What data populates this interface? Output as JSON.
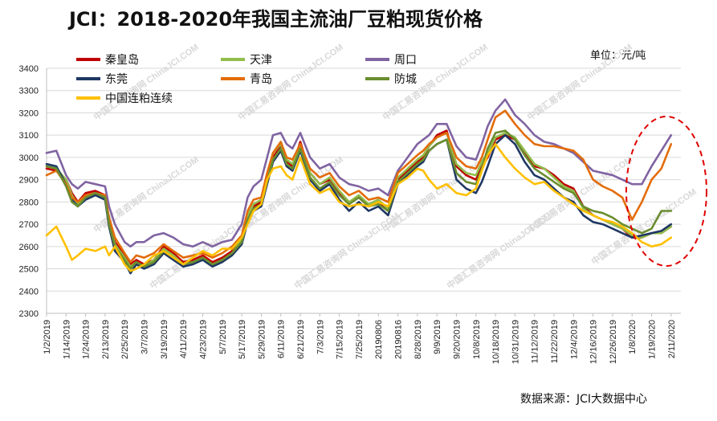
{
  "header": {
    "title": "JCI：2018-2020年我国主流油厂豆粕现货价格",
    "unit": "单位：元/吨",
    "source": "数据来源：JCI大数据中心"
  },
  "watermark_text": "中国汇易咨询网 ChinaJCI.COM",
  "chart_data": {
    "type": "line",
    "ylim": [
      2300,
      3400
    ],
    "yticks": [
      2300,
      2400,
      2500,
      2600,
      2700,
      2800,
      2900,
      3000,
      3100,
      3200,
      3300,
      3400
    ],
    "x_tick_labels": [
      "1/2/2019",
      "1/14/2019",
      "1/24/2019",
      "2/13/2019",
      "2/25/2019",
      "3/7/2019",
      "3/19/2019",
      "4/11/2019",
      "4/23/2019",
      "5/7/2019",
      "5/17/2019",
      "5/29/2019",
      "6/11/2019",
      "6/21/2019",
      "7/3/2019",
      "7/15/2019",
      "7/25/2019",
      "20190806",
      "20190816",
      "8/28/2019",
      "9/9/2019",
      "9/20/2019",
      "10/8/2019",
      "10/18/2019",
      "10/31/2019",
      "11/12/2019",
      "11/22/2019",
      "12/4/2019",
      "12/16/2019",
      "12/26/2019",
      "1/8/2020",
      "1/19/2020",
      "2/11/2020"
    ],
    "x_domain": [
      0,
      32.5
    ],
    "grid": true,
    "legend_position": "top-left, three columns",
    "highlight": "red dashed ellipse around latest values (Jan–Feb 2020)",
    "series": [
      {
        "name": "秦皇岛",
        "color": "#c00000",
        "x": [
          0,
          0.5,
          1,
          1.3,
          1.6,
          2,
          2.5,
          3,
          3.2,
          3.5,
          4,
          4.3,
          4.6,
          5,
          5.5,
          6,
          6.5,
          7,
          7.5,
          8,
          8.5,
          9,
          9.5,
          10,
          10.3,
          10.6,
          11,
          11.3,
          11.6,
          12,
          12.3,
          12.6,
          13,
          13.5,
          14,
          14.5,
          15,
          15.5,
          16,
          16.5,
          17,
          17.5,
          18,
          18.5,
          19,
          19.3,
          19.6,
          20,
          20.5,
          21,
          21.5,
          22,
          22.3,
          22.6,
          23,
          23.5,
          24,
          24.5,
          25,
          25.5,
          26,
          26.5,
          27,
          27.5,
          28,
          28.5,
          29,
          29.5,
          30,
          30.5,
          31,
          31.5,
          32
        ],
        "values": [
          2950,
          2940,
          2900,
          2840,
          2800,
          2840,
          2850,
          2830,
          2720,
          2620,
          2560,
          2520,
          2540,
          2520,
          2540,
          2600,
          2570,
          2530,
          2540,
          2560,
          2530,
          2550,
          2580,
          2640,
          2730,
          2780,
          2800,
          2900,
          3000,
          3050,
          2980,
          2960,
          3070,
          2930,
          2880,
          2900,
          2840,
          2800,
          2820,
          2780,
          2800,
          2760,
          2900,
          2940,
          2980,
          3000,
          3050,
          3100,
          3120,
          2960,
          2920,
          2900,
          2960,
          3000,
          3080,
          3100,
          3080,
          3020,
          2960,
          2950,
          2920,
          2880,
          2860,
          2780,
          2740,
          2720,
          2700,
          2680,
          2640,
          2640,
          2660,
          2660,
          2690
        ]
      },
      {
        "name": "天津",
        "color": "#92bd4b",
        "x": [
          0,
          0.5,
          1,
          1.3,
          1.6,
          2,
          2.5,
          3,
          3.2,
          3.5,
          4,
          4.3,
          4.6,
          5,
          5.5,
          6,
          6.5,
          7,
          7.5,
          8,
          8.5,
          9,
          9.5,
          10,
          10.3,
          10.6,
          11,
          11.3,
          11.6,
          12,
          12.3,
          12.6,
          13,
          13.5,
          14,
          14.5,
          15,
          15.5,
          16,
          16.5,
          17,
          17.5,
          18,
          18.5,
          19,
          19.3,
          19.6,
          20,
          20.5,
          21,
          21.5,
          22,
          22.3,
          22.6,
          23,
          23.5,
          24,
          24.5,
          25,
          25.5,
          26,
          26.5,
          27,
          27.5,
          28,
          28.5,
          29,
          29.5,
          30,
          30.5,
          31,
          31.5,
          32
        ],
        "values": [
          2960,
          2950,
          2900,
          2830,
          2790,
          2830,
          2840,
          2820,
          2710,
          2610,
          2550,
          2510,
          2530,
          2510,
          2540,
          2590,
          2560,
          2520,
          2530,
          2550,
          2520,
          2540,
          2570,
          2630,
          2740,
          2790,
          2810,
          2920,
          3020,
          3060,
          2990,
          2970,
          3060,
          2930,
          2880,
          2910,
          2850,
          2800,
          2830,
          2790,
          2810,
          2770,
          2910,
          2950,
          2990,
          3010,
          3050,
          3090,
          3110,
          2970,
          2930,
          2920,
          2980,
          3020,
          3090,
          3110,
          3090,
          3030,
          2970,
          2950,
          2910,
          2870,
          2850,
          2770,
          2740,
          2720,
          2700,
          2680,
          2650,
          2640,
          2660,
          2660,
          2690
        ]
      },
      {
        "name": "周口",
        "color": "#8064a2",
        "x": [
          0,
          0.5,
          1,
          1.3,
          1.6,
          2,
          2.5,
          3,
          3.2,
          3.5,
          4,
          4.3,
          4.6,
          5,
          5.5,
          6,
          6.5,
          7,
          7.5,
          8,
          8.5,
          9,
          9.5,
          10,
          10.3,
          10.6,
          11,
          11.3,
          11.6,
          12,
          12.3,
          12.6,
          13,
          13.5,
          14,
          14.5,
          15,
          15.5,
          16,
          16.5,
          17,
          17.5,
          18,
          18.5,
          19,
          19.3,
          19.6,
          20,
          20.5,
          21,
          21.5,
          22,
          22.3,
          22.6,
          23,
          23.5,
          24,
          24.5,
          25,
          25.5,
          26,
          26.5,
          27,
          27.5,
          28,
          28.5,
          29,
          29.5,
          30,
          30.5,
          31,
          31.5,
          32
        ],
        "values": [
          3020,
          3030,
          2920,
          2880,
          2860,
          2890,
          2880,
          2870,
          2780,
          2700,
          2620,
          2600,
          2620,
          2620,
          2650,
          2660,
          2640,
          2610,
          2600,
          2620,
          2600,
          2620,
          2630,
          2700,
          2820,
          2870,
          2900,
          3000,
          3100,
          3110,
          3060,
          3040,
          3110,
          3000,
          2950,
          2970,
          2910,
          2880,
          2870,
          2850,
          2860,
          2830,
          2940,
          3000,
          3060,
          3080,
          3100,
          3150,
          3150,
          3050,
          3000,
          2990,
          3060,
          3140,
          3210,
          3260,
          3190,
          3150,
          3100,
          3070,
          3060,
          3040,
          3020,
          2980,
          2940,
          2930,
          2920,
          2900,
          2880,
          2880,
          2960,
          3030,
          3100
        ]
      },
      {
        "name": "东莞",
        "color": "#1f3864",
        "x": [
          0,
          0.5,
          1,
          1.3,
          1.6,
          2,
          2.5,
          3,
          3.2,
          3.5,
          4,
          4.3,
          4.6,
          5,
          5.5,
          6,
          6.5,
          7,
          7.5,
          8,
          8.5,
          9,
          9.5,
          10,
          10.3,
          10.6,
          11,
          11.3,
          11.6,
          12,
          12.3,
          12.6,
          13,
          13.5,
          14,
          14.5,
          15,
          15.5,
          16,
          16.5,
          17,
          17.5,
          18,
          18.5,
          19,
          19.3,
          19.6,
          20,
          20.5,
          21,
          21.5,
          22,
          22.3,
          22.6,
          23,
          23.5,
          24,
          24.5,
          25,
          25.5,
          26,
          26.5,
          27,
          27.5,
          28,
          28.5,
          29,
          29.5,
          30,
          30.5,
          31,
          31.5,
          32
        ],
        "values": [
          2970,
          2960,
          2880,
          2810,
          2780,
          2810,
          2830,
          2810,
          2690,
          2580,
          2530,
          2480,
          2520,
          2500,
          2520,
          2570,
          2540,
          2510,
          2520,
          2540,
          2510,
          2530,
          2560,
          2610,
          2710,
          2760,
          2780,
          2880,
          2980,
          3030,
          2960,
          2940,
          3030,
          2900,
          2850,
          2880,
          2810,
          2760,
          2800,
          2760,
          2780,
          2740,
          2880,
          2920,
          2960,
          2980,
          3030,
          3060,
          3080,
          2900,
          2860,
          2840,
          2890,
          2960,
          3060,
          3100,
          3060,
          2980,
          2920,
          2900,
          2860,
          2820,
          2800,
          2740,
          2710,
          2700,
          2680,
          2660,
          2640,
          2650,
          2660,
          2670,
          2700
        ]
      },
      {
        "name": "青岛",
        "color": "#e36c0a",
        "x": [
          0,
          0.5,
          1,
          1.3,
          1.6,
          2,
          2.5,
          3,
          3.2,
          3.5,
          4,
          4.3,
          4.6,
          5,
          5.5,
          6,
          6.5,
          7,
          7.5,
          8,
          8.5,
          9,
          9.5,
          10,
          10.3,
          10.6,
          11,
          11.3,
          11.6,
          12,
          12.3,
          12.6,
          13,
          13.5,
          14,
          14.5,
          15,
          15.5,
          16,
          16.5,
          17,
          17.5,
          18,
          18.5,
          19,
          19.3,
          19.6,
          20,
          20.5,
          21,
          21.5,
          22,
          22.3,
          22.6,
          23,
          23.5,
          24,
          24.5,
          25,
          25.5,
          26,
          26.5,
          27,
          27.5,
          28,
          28.5,
          29,
          29.5,
          30,
          30.5,
          31,
          31.5,
          32
        ],
        "values": [
          2920,
          2940,
          2880,
          2820,
          2800,
          2830,
          2840,
          2830,
          2730,
          2640,
          2570,
          2530,
          2560,
          2550,
          2570,
          2610,
          2580,
          2550,
          2560,
          2570,
          2550,
          2570,
          2600,
          2650,
          2760,
          2810,
          2820,
          2930,
          3020,
          3070,
          3000,
          2990,
          3060,
          2950,
          2910,
          2930,
          2870,
          2830,
          2850,
          2810,
          2820,
          2800,
          2930,
          2970,
          3010,
          3030,
          3060,
          3090,
          3110,
          3000,
          2960,
          2950,
          3000,
          3080,
          3180,
          3210,
          3150,
          3100,
          3060,
          3050,
          3050,
          3040,
          3030,
          2990,
          2900,
          2870,
          2850,
          2820,
          2720,
          2800,
          2900,
          2950,
          3060
        ]
      },
      {
        "name": "防城",
        "color": "#6a8d2f",
        "x": [
          0,
          0.5,
          1,
          1.3,
          1.6,
          2,
          2.5,
          3,
          3.2,
          3.5,
          4,
          4.3,
          4.6,
          5,
          5.5,
          6,
          6.5,
          7,
          7.5,
          8,
          8.5,
          9,
          9.5,
          10,
          10.3,
          10.6,
          11,
          11.3,
          11.6,
          12,
          12.3,
          12.6,
          13,
          13.5,
          14,
          14.5,
          15,
          15.5,
          16,
          16.5,
          17,
          17.5,
          18,
          18.5,
          19,
          19.3,
          19.6,
          20,
          20.5,
          21,
          21.5,
          22,
          22.3,
          22.6,
          23,
          23.5,
          24,
          24.5,
          25,
          25.5,
          26,
          26.5,
          27,
          27.5,
          28,
          28.5,
          29,
          29.5,
          30,
          30.5,
          31,
          31.5,
          32
        ],
        "values": [
          2960,
          2950,
          2870,
          2800,
          2780,
          2820,
          2840,
          2820,
          2700,
          2600,
          2540,
          2500,
          2530,
          2510,
          2530,
          2580,
          2550,
          2520,
          2530,
          2550,
          2520,
          2540,
          2570,
          2620,
          2720,
          2770,
          2790,
          2890,
          2990,
          3040,
          2970,
          2950,
          3040,
          2910,
          2860,
          2890,
          2830,
          2790,
          2820,
          2780,
          2790,
          2760,
          2890,
          2930,
          2970,
          2990,
          3030,
          3060,
          3080,
          2930,
          2890,
          2880,
          2950,
          3040,
          3110,
          3120,
          3080,
          3010,
          2950,
          2920,
          2890,
          2860,
          2840,
          2780,
          2760,
          2750,
          2730,
          2700,
          2680,
          2660,
          2680,
          2760,
          2760
        ]
      },
      {
        "name": "中国连粕连续",
        "color": "#ffc000",
        "x": [
          0,
          0.5,
          1,
          1.3,
          1.6,
          2,
          2.5,
          3,
          3.2,
          3.5,
          4,
          4.3,
          4.6,
          5,
          5.5,
          6,
          6.5,
          7,
          7.5,
          8,
          8.5,
          9,
          9.5,
          10,
          10.3,
          10.6,
          11,
          11.3,
          11.6,
          12,
          12.3,
          12.6,
          13,
          13.5,
          14,
          14.5,
          15,
          15.5,
          16,
          16.5,
          17,
          17.5,
          18,
          18.5,
          19,
          19.3,
          19.6,
          20,
          20.5,
          21,
          21.5,
          22,
          22.3,
          22.6,
          23,
          23.5,
          24,
          24.5,
          25,
          25.5,
          26,
          26.5,
          27,
          27.5,
          28,
          28.5,
          29,
          29.5,
          30,
          30.5,
          31,
          31.5,
          32
        ],
        "values": [
          2650,
          2690,
          2600,
          2540,
          2560,
          2590,
          2580,
          2600,
          2560,
          2600,
          2520,
          2490,
          2500,
          2520,
          2560,
          2580,
          2550,
          2520,
          2550,
          2580,
          2560,
          2590,
          2590,
          2640,
          2700,
          2760,
          2790,
          2900,
          2950,
          2960,
          2920,
          2900,
          3000,
          2880,
          2840,
          2860,
          2800,
          2780,
          2790,
          2780,
          2800,
          2780,
          2880,
          2910,
          2950,
          2940,
          2900,
          2860,
          2880,
          2840,
          2830,
          2860,
          2940,
          3010,
          3060,
          3000,
          2950,
          2910,
          2880,
          2890,
          2850,
          2820,
          2790,
          2760,
          2740,
          2720,
          2710,
          2690,
          2660,
          2620,
          2600,
          2610,
          2640
        ]
      }
    ]
  }
}
